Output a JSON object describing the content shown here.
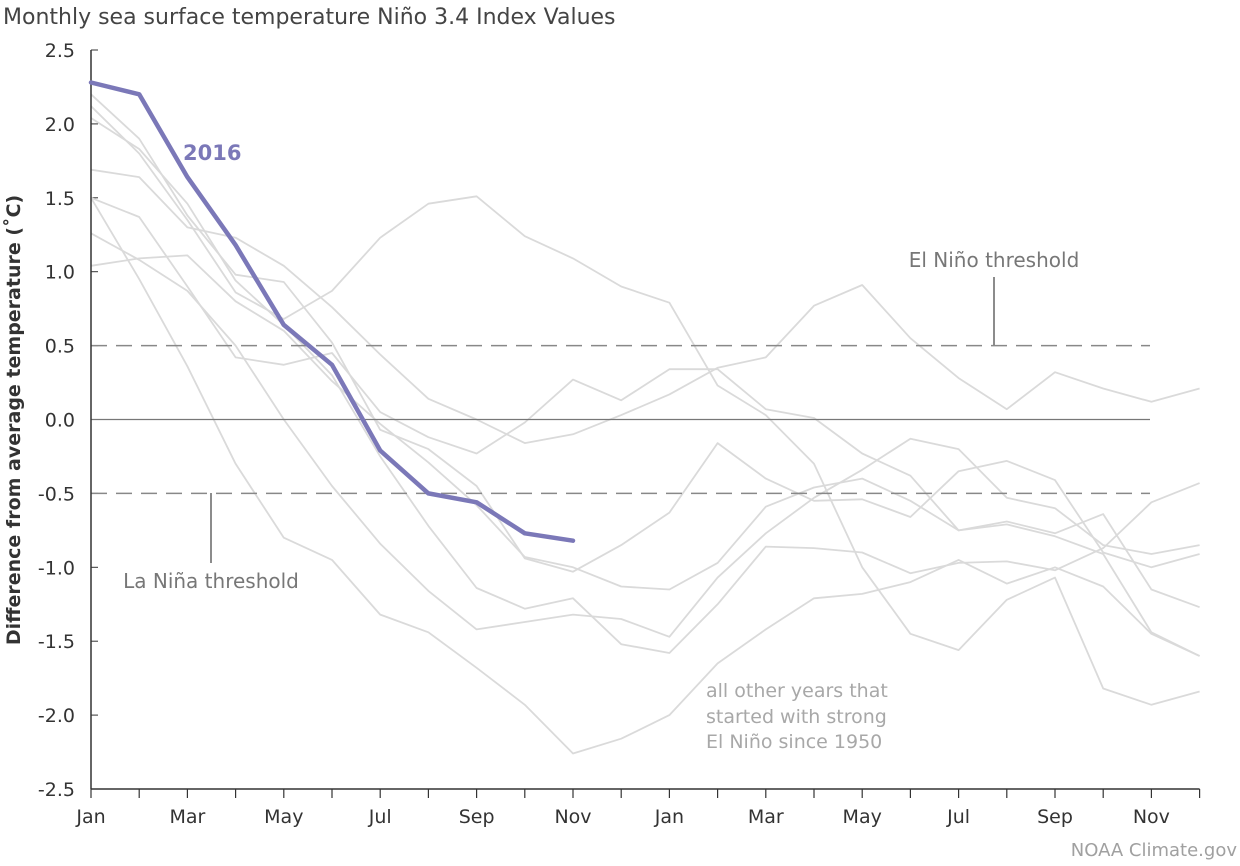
{
  "chart_data": {
    "type": "line",
    "title": "Monthly sea surface temperature Niño 3.4 Index Values",
    "ylabel": "Difference from average temperature (˚C)",
    "ylim": [
      -2.5,
      2.5
    ],
    "yticks": [
      "2.5",
      "2.0",
      "1.5",
      "1.0",
      "0.5",
      "0.0",
      "-0.5",
      "-1.0",
      "-1.5",
      "-2.0",
      "-2.5"
    ],
    "ytick_values": [
      2.5,
      2.0,
      1.5,
      1.0,
      0.5,
      0.0,
      -0.5,
      -1.0,
      -1.5,
      -2.0,
      -2.5
    ],
    "x": [
      "Jan",
      "Feb",
      "Mar",
      "Apr",
      "May",
      "Jun",
      "Jul",
      "Aug",
      "Sep",
      "Oct",
      "Nov",
      "Dec",
      "Jan",
      "Feb",
      "Mar",
      "Apr",
      "May",
      "Jun",
      "Jul",
      "Aug",
      "Sep",
      "Oct",
      "Nov",
      "Dec"
    ],
    "xtick_labels": [
      "Jan",
      "Mar",
      "May",
      "Jul",
      "Sep",
      "Nov",
      "Jan",
      "Mar",
      "May",
      "Jul",
      "Sep",
      "Nov"
    ],
    "xtick_label_index": [
      0,
      2,
      4,
      6,
      8,
      10,
      12,
      14,
      16,
      18,
      20,
      22
    ],
    "highlight": {
      "name": "2016",
      "color": "#7b78b8",
      "values": [
        2.28,
        2.2,
        1.64,
        1.18,
        0.64,
        0.37,
        -0.21,
        -0.5,
        -0.56,
        -0.77,
        -0.82
      ]
    },
    "background_series": [
      {
        "values": [
          2.2,
          1.9,
          1.38,
          0.98,
          0.93,
          0.52,
          -0.07,
          -0.2,
          -0.45,
          -0.94,
          -1.03,
          -0.85,
          -0.63,
          -0.16,
          -0.4,
          -0.55,
          -0.54,
          -0.66,
          -0.35,
          -0.28,
          -0.41,
          -0.9,
          -1.0,
          -0.91
        ]
      },
      {
        "values": [
          2.12,
          1.8,
          1.35,
          0.86,
          0.68,
          0.87,
          1.23,
          1.46,
          1.51,
          1.24,
          1.09,
          0.9,
          0.79,
          0.23,
          0.03,
          -0.3,
          -1.0,
          -1.45,
          -1.56,
          -1.22,
          -1.07,
          -1.82,
          -1.93,
          -1.84
        ]
      },
      {
        "values": [
          1.69,
          1.64,
          1.3,
          1.23,
          1.04,
          0.76,
          0.44,
          0.14,
          0.0,
          -0.16,
          -0.1,
          0.03,
          0.17,
          0.35,
          0.42,
          0.77,
          0.91,
          0.55,
          0.28,
          0.07,
          0.32,
          0.21,
          0.12,
          0.21
        ]
      },
      {
        "values": [
          1.5,
          1.37,
          0.9,
          0.42,
          0.37,
          0.45,
          0.05,
          -0.12,
          -0.23,
          -0.02,
          0.27,
          0.13,
          0.34,
          0.34,
          0.07,
          0.01,
          -0.23,
          -0.38,
          -0.75,
          -0.69,
          -0.77,
          -0.64,
          -1.15,
          -1.27
        ]
      },
      {
        "values": [
          1.26,
          1.08,
          0.87,
          0.5,
          0.0,
          -0.45,
          -0.84,
          -1.16,
          -1.42,
          -1.37,
          -1.32,
          -1.35,
          -1.47,
          -1.07,
          -0.77,
          -0.53,
          -0.34,
          -0.13,
          -0.2,
          -0.53,
          -0.6,
          -0.85,
          -0.91,
          -0.85
        ]
      },
      {
        "values": [
          1.04,
          1.09,
          1.11,
          0.8,
          0.6,
          0.26,
          -0.03,
          -0.29,
          -0.58,
          -0.93,
          -1.0,
          -1.13,
          -1.15,
          -0.97,
          -0.59,
          -0.46,
          -0.4,
          -0.55,
          -0.75,
          -0.71,
          -0.79,
          -0.91,
          -1.44,
          -1.6
        ]
      },
      {
        "values": [
          1.5,
          0.95,
          0.36,
          -0.3,
          -0.8,
          -0.95,
          -1.32,
          -1.44,
          -1.68,
          -1.93,
          -2.26,
          -2.16,
          -2.0,
          -1.65,
          -1.42,
          -1.21,
          -1.18,
          -1.1,
          -0.95,
          -1.11,
          -1.0,
          -1.13,
          -1.45,
          -1.6
        ]
      },
      {
        "values": [
          2.04,
          1.83,
          1.46,
          0.94,
          0.64,
          0.3,
          -0.25,
          -0.72,
          -1.14,
          -1.28,
          -1.21,
          -1.52,
          -1.58,
          -1.25,
          -0.86,
          -0.87,
          -0.9,
          -1.04,
          -0.97,
          -0.96,
          -1.02,
          -0.87,
          -0.56,
          -0.43
        ]
      }
    ],
    "thresholds": [
      {
        "label": "El Niño threshold",
        "value": 0.5
      },
      {
        "label": "La Niña threshold",
        "value": -0.5
      }
    ],
    "annotation": [
      "all other years that",
      "started with strong",
      "El Niño since 1950"
    ],
    "grid": false,
    "legend": "none"
  },
  "credit": "NOAA Climate.gov"
}
